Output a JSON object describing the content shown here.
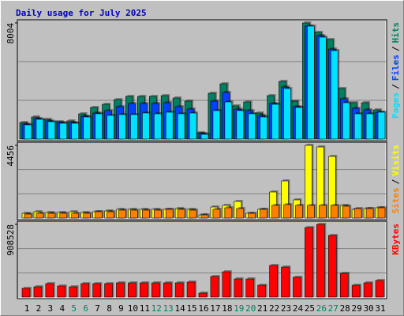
{
  "chart_data": [
    {
      "type": "bar",
      "title": "Daily usage for July 2025",
      "legend_separator": "/",
      "ylim": [
        0,
        8004
      ],
      "yticks": [
        8004
      ],
      "series": [
        {
          "name": "Hits",
          "color": "#008060",
          "values": [
            1143,
            1525,
            1361,
            1198,
            1252,
            1742,
            2178,
            2396,
            2722,
            2940,
            2940,
            2940,
            2995,
            2831,
            2614,
            436,
            3158,
            3811,
            2287,
            2559,
            1797,
            2995,
            3975,
            2614,
            8004,
            7351,
            6861,
            3485,
            2505,
            2505,
            2015
          ]
        },
        {
          "name": "Files",
          "color": "#0040ff",
          "values": [
            1035,
            1416,
            1252,
            1143,
            1143,
            1579,
            1797,
            1960,
            2232,
            2450,
            2450,
            2450,
            2505,
            2232,
            2069,
            381,
            2614,
            3213,
            2069,
            1960,
            1633,
            2450,
            3594,
            2232,
            7786,
            7133,
            6207,
            2777,
            2123,
            2015,
            1851
          ]
        },
        {
          "name": "Pages",
          "color": "#00e0ff",
          "values": [
            980,
            1361,
            1198,
            1089,
            1089,
            1525,
            1742,
            1633,
            1688,
            1688,
            1797,
            1742,
            1851,
            1742,
            1797,
            327,
            1960,
            2559,
            1960,
            1742,
            1525,
            2396,
            3485,
            2178,
            7786,
            7024,
            6098,
            2505,
            1742,
            1742,
            1851
          ]
        }
      ]
    },
    {
      "type": "bar",
      "legend_separator": "/",
      "ylim": [
        0,
        4456
      ],
      "yticks": [
        4456
      ],
      "series": [
        {
          "name": "Visits",
          "color": "#ffff00",
          "values": [
            291,
            387,
            339,
            339,
            387,
            339,
            387,
            436,
            533,
            533,
            533,
            533,
            533,
            581,
            533,
            194,
            678,
            775,
            1017,
            291,
            533,
            1598,
            2276,
            1114,
            4456,
            4359,
            3778,
            775,
            533,
            581,
            630
          ]
        },
        {
          "name": "Sites",
          "color": "#ff8000",
          "values": [
            242,
            291,
            291,
            291,
            291,
            291,
            387,
            387,
            484,
            484,
            484,
            484,
            533,
            533,
            484,
            194,
            533,
            630,
            581,
            291,
            533,
            775,
            823,
            775,
            775,
            775,
            775,
            727,
            581,
            581,
            630
          ]
        }
      ]
    },
    {
      "type": "bar",
      "ylim": [
        0,
        908528
      ],
      "yticks": [
        908528
      ],
      "categories": [
        "1",
        "2",
        "3",
        "4",
        "5",
        "6",
        "7",
        "8",
        "9",
        "10",
        "11",
        "12",
        "13",
        "14",
        "15",
        "16",
        "17",
        "18",
        "19",
        "20",
        "21",
        "22",
        "23",
        "24",
        "25",
        "26",
        "27",
        "28",
        "29",
        "30",
        "31"
      ],
      "category_colors": [
        "#000",
        "#000",
        "#000",
        "#000",
        "#008060",
        "#008060",
        "#000",
        "#000",
        "#000",
        "#000",
        "#000",
        "#008060",
        "#008060",
        "#000",
        "#000",
        "#000",
        "#000",
        "#000",
        "#008060",
        "#008060",
        "#000",
        "#000",
        "#000",
        "#000",
        "#000",
        "#008060",
        "#008060",
        "#000",
        "#000",
        "#000",
        "#000"
      ],
      "series": [
        {
          "name": "KBytes",
          "color": "#ff0000",
          "values": [
            108628,
            128379,
            167880,
            138254,
            128379,
            167880,
            167880,
            167880,
            177755,
            177755,
            177755,
            177755,
            177755,
            177755,
            187631,
            49377,
            256758,
            316010,
            227132,
            227132,
            148130,
            395012,
            375261,
            246883,
            869026,
            908528,
            770273,
            296259,
            148130,
            177755,
            207381
          ]
        }
      ]
    }
  ]
}
